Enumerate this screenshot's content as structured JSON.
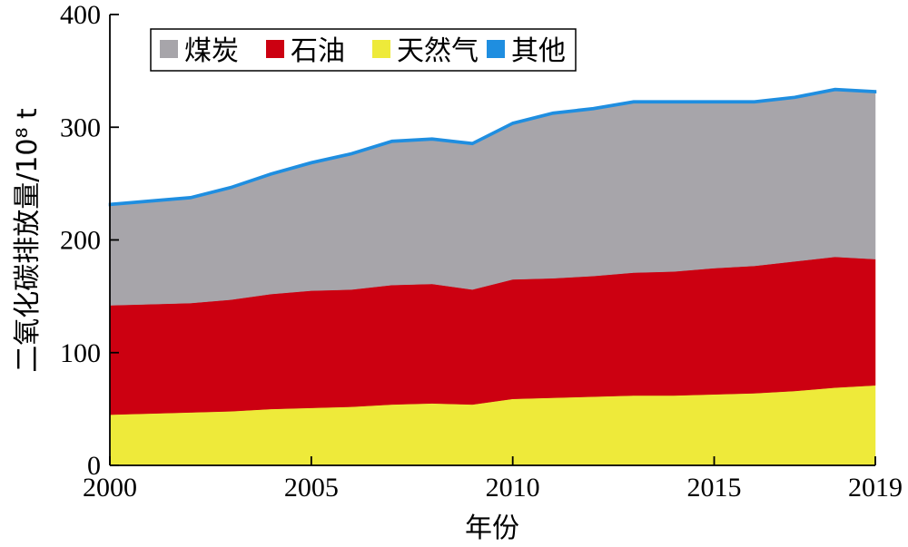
{
  "chart_data": {
    "type": "area",
    "stacked": true,
    "x": [
      2000,
      2001,
      2002,
      2003,
      2004,
      2005,
      2006,
      2007,
      2008,
      2009,
      2010,
      2011,
      2012,
      2013,
      2014,
      2015,
      2016,
      2017,
      2018,
      2019
    ],
    "series": [
      {
        "name": "天然气",
        "color": "#eeea3a",
        "values": [
          45,
          46,
          47,
          48,
          50,
          51,
          52,
          54,
          55,
          54,
          59,
          60,
          61,
          62,
          62,
          63,
          64,
          66,
          69,
          71
        ]
      },
      {
        "name": "石油",
        "color": "#cc0011",
        "values": [
          97,
          97,
          97,
          99,
          102,
          104,
          104,
          106,
          106,
          102,
          106,
          106,
          107,
          109,
          110,
          112,
          113,
          115,
          116,
          112
        ]
      },
      {
        "name": "煤炭",
        "color": "#a7a5aa",
        "values": [
          89,
          91,
          93,
          99,
          106,
          113,
          120,
          127,
          128,
          129,
          138,
          146,
          148,
          151,
          150,
          147,
          145,
          145,
          148,
          148
        ]
      },
      {
        "name": "其他",
        "color": "#1f8ee0",
        "values": [
          1,
          1,
          1,
          1,
          1,
          1,
          1,
          1,
          1,
          1,
          1,
          1,
          1,
          1,
          1,
          1,
          1,
          1,
          1,
          1
        ]
      }
    ],
    "legend_order": [
      "煤炭",
      "石油",
      "天然气",
      "其他"
    ],
    "legend_position": "top-left",
    "xlabel": "年份",
    "ylabel": "二氧化碳排放量/10⁸ t",
    "xlim": [
      2000,
      2019
    ],
    "ylim": [
      0,
      400
    ],
    "x_ticks": [
      2000,
      2005,
      2010,
      2015,
      2019
    ],
    "y_ticks": [
      0,
      100,
      200,
      300,
      400
    ],
    "grid": false
  }
}
